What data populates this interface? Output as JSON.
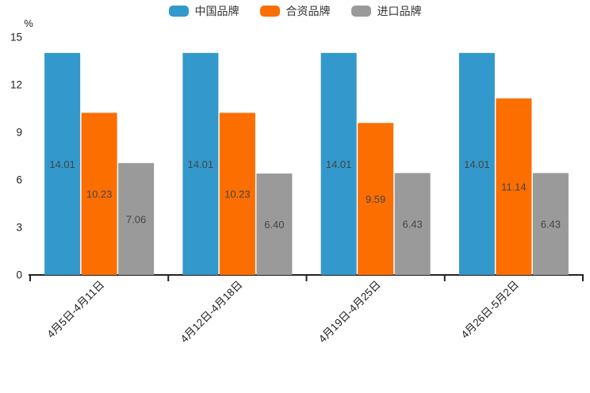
{
  "chart_data": {
    "type": "bar",
    "title": "",
    "xlabel": "",
    "ylabel": "%",
    "unit_label": "%",
    "categories": [
      "4月5日-4月11日",
      "4月12日-4月18日",
      "4月19日-4月25日",
      "4月26日-5月2日"
    ],
    "series": [
      {
        "name": "中国品牌",
        "color": "#3398cb",
        "values": [
          14.01,
          14.01,
          14.01,
          14.01
        ]
      },
      {
        "name": "合资品牌",
        "color": "#fd6e01",
        "values": [
          10.23,
          10.23,
          9.59,
          11.14
        ]
      },
      {
        "name": "进口品牌",
        "color": "#9a9a9a",
        "values": [
          7.06,
          6.4,
          6.43,
          6.43
        ]
      }
    ],
    "ylim": [
      0,
      15
    ],
    "yticks": [
      0,
      3,
      6,
      9,
      12,
      15
    ],
    "grid": false,
    "legend_position": "top",
    "bar_value_labels": true,
    "x_label_rotation": 45
  },
  "colors": {
    "axis": "#222222",
    "tick_label": "#222222",
    "value_label": "#454545",
    "background": "#ffffff"
  }
}
